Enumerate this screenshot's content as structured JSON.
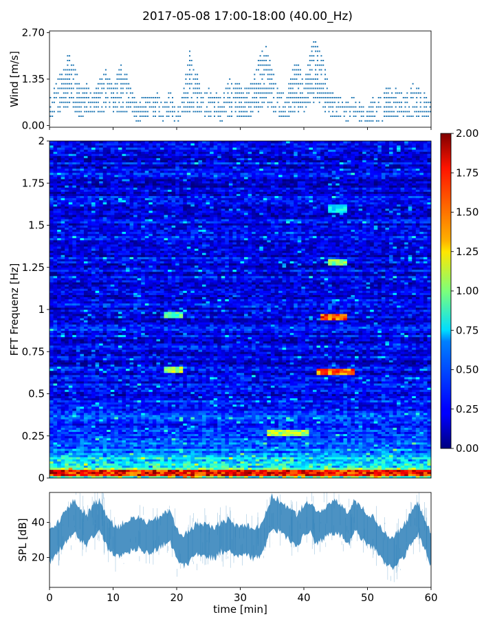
{
  "figure": {
    "title": "2017-05-08 17:00-18:00 (40.00_Hz)"
  },
  "chart_data": [
    {
      "type": "scatter",
      "panel": "wind",
      "title": "",
      "xlabel": "",
      "ylabel": "Wind [m/s]",
      "xlim": [
        0,
        60
      ],
      "ylim": [
        -0.05,
        2.75
      ],
      "yticks": [
        "0.00",
        "1.35",
        "2.70"
      ],
      "grid": false,
      "color": "#1f77b4",
      "series": [
        {
          "x": [
            0,
            1,
            2,
            3,
            4,
            5,
            6,
            7,
            8,
            9,
            10,
            11,
            12,
            13,
            14,
            15,
            16,
            17,
            18,
            19,
            20,
            21,
            22,
            23,
            24,
            25,
            26,
            27,
            28,
            29,
            30,
            31,
            32,
            33,
            34,
            35,
            36,
            37,
            38,
            39,
            40,
            41,
            42,
            43,
            44,
            45,
            46,
            47,
            48,
            49,
            50,
            51,
            52,
            53,
            54,
            55,
            56,
            57,
            58,
            59,
            60
          ],
          "y_max": [
            0.8,
            1.3,
            1.6,
            2.1,
            1.7,
            1.1,
            1.3,
            1.0,
            1.5,
            1.7,
            1.1,
            1.8,
            1.7,
            1.0,
            0.7,
            0.9,
            0.8,
            1.0,
            0.6,
            1.1,
            0.5,
            1.0,
            2.3,
            1.7,
            0.9,
            1.1,
            1.0,
            0.8,
            1.4,
            1.3,
            1.2,
            1.1,
            1.4,
            2.0,
            2.4,
            1.7,
            1.1,
            0.9,
            1.5,
            2.0,
            1.2,
            2.2,
            2.7,
            2.0,
            1.0,
            0.9,
            0.8,
            0.7,
            0.9,
            0.6,
            0.5,
            0.9,
            0.8,
            1.1,
            1.2,
            1.0,
            0.9,
            1.3,
            1.1,
            1.0,
            0.7
          ],
          "y_min": [
            0.2,
            0.3,
            0.4,
            0.5,
            0.4,
            0.2,
            0.3,
            0.3,
            0.4,
            0.4,
            0.3,
            0.4,
            0.4,
            0.2,
            0.1,
            0.2,
            0.2,
            0.2,
            0.1,
            0.2,
            0.1,
            0.2,
            0.4,
            0.4,
            0.2,
            0.2,
            0.2,
            0.1,
            0.2,
            0.2,
            0.2,
            0.2,
            0.3,
            0.4,
            0.6,
            0.4,
            0.2,
            0.2,
            0.3,
            0.4,
            0.3,
            0.5,
            0.7,
            0.5,
            0.2,
            0.2,
            0.2,
            0.1,
            0.2,
            0.1,
            0.1,
            0.1,
            0.1,
            0.2,
            0.2,
            0.2,
            0.2,
            0.2,
            0.2,
            0.2,
            0.1
          ]
        }
      ]
    },
    {
      "type": "heatmap",
      "panel": "spectrogram",
      "title": "",
      "xlabel": "",
      "ylabel": "FFT Frequenz [Hz]",
      "xlim": [
        0,
        60
      ],
      "ylim": [
        0,
        2
      ],
      "yticks": [
        "0",
        "0.25",
        "0.5",
        "0.75",
        "1",
        "1.25",
        "1.5",
        "1.75",
        "2"
      ],
      "colormap": "jet",
      "color_range": [
        0,
        2
      ],
      "colorbar_ticks": [
        "0.00",
        "0.25",
        "0.50",
        "0.75",
        "1.00",
        "1.25",
        "1.50",
        "1.75",
        "2.00"
      ],
      "hotspots": [
        {
          "t": [
            42.5,
            47.0
          ],
          "f": 0.96,
          "value": 1.8
        },
        {
          "t": [
            42.0,
            48.0
          ],
          "f": 0.63,
          "value": 1.7
        },
        {
          "t": [
            18.0,
            21.0
          ],
          "f": 0.64,
          "value": 1.2
        },
        {
          "t": [
            18.0,
            21.0
          ],
          "f": 0.97,
          "value": 1.0
        },
        {
          "t": [
            44.0,
            47.0
          ],
          "f": 1.28,
          "value": 1.1
        },
        {
          "t": [
            44.0,
            47.0
          ],
          "f": 1.6,
          "value": 0.8
        },
        {
          "t": [
            34.0,
            41.0
          ],
          "f": 0.27,
          "value": 1.2
        },
        {
          "t": [
            0.0,
            60.0
          ],
          "f": 0.03,
          "value": 1.9
        }
      ]
    },
    {
      "type": "area",
      "panel": "spl",
      "title": "",
      "xlabel": "time [min]",
      "ylabel": "SPL [dB]",
      "xlim": [
        0,
        60
      ],
      "ylim": [
        3,
        57
      ],
      "yticks": [
        "20",
        "40"
      ],
      "xticks": [
        "0",
        "10",
        "20",
        "30",
        "40",
        "50",
        "60"
      ],
      "grid": false,
      "color": "#1f77b4",
      "series": [
        {
          "x": [
            0,
            1,
            2,
            3,
            4,
            5,
            6,
            7,
            8,
            9,
            10,
            11,
            12,
            13,
            14,
            15,
            16,
            17,
            18,
            19,
            20,
            21,
            22,
            23,
            24,
            25,
            26,
            27,
            28,
            29,
            30,
            31,
            32,
            33,
            34,
            35,
            36,
            37,
            38,
            39,
            40,
            41,
            42,
            43,
            44,
            45,
            46,
            47,
            48,
            49,
            50,
            51,
            52,
            53,
            54,
            55,
            56,
            57,
            58,
            59,
            60
          ],
          "mean": [
            26,
            30,
            35,
            40,
            44,
            38,
            36,
            42,
            44,
            35,
            30,
            29,
            32,
            33,
            34,
            32,
            31,
            34,
            36,
            38,
            27,
            24,
            26,
            30,
            31,
            29,
            28,
            32,
            33,
            30,
            29,
            30,
            28,
            29,
            36,
            46,
            44,
            41,
            38,
            35,
            42,
            43,
            36,
            39,
            42,
            43,
            41,
            36,
            44,
            40,
            36,
            34,
            29,
            24,
            23,
            26,
            31,
            38,
            42,
            34,
            24
          ],
          "spread": [
            8,
            8,
            8,
            8,
            8,
            8,
            8,
            8,
            8,
            8,
            8,
            8,
            8,
            8,
            8,
            8,
            8,
            8,
            8,
            8,
            8,
            8,
            8,
            8,
            8,
            8,
            8,
            8,
            8,
            8,
            8,
            8,
            8,
            8,
            8,
            8,
            8,
            8,
            8,
            8,
            8,
            8,
            8,
            8,
            8,
            8,
            8,
            8,
            8,
            8,
            8,
            8,
            8,
            8,
            8,
            8,
            8,
            8,
            8,
            8,
            8
          ]
        }
      ]
    }
  ]
}
